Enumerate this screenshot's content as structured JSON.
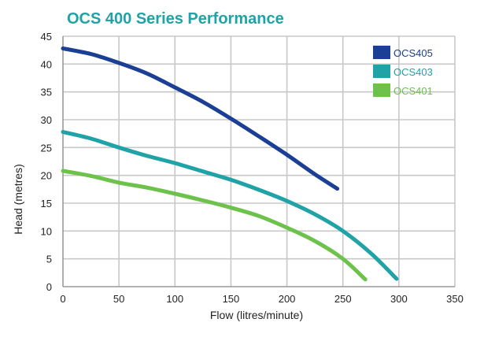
{
  "chart_data": {
    "type": "line",
    "title": "OCS 400 Series Performance",
    "xlabel": "Flow (litres/minute)",
    "ylabel": "Head (metres)",
    "xlim": [
      0,
      350
    ],
    "ylim": [
      0,
      45
    ],
    "x_ticks": [
      "0",
      "50",
      "100",
      "150",
      "200",
      "250",
      "300",
      "350"
    ],
    "y_ticks": [
      "0",
      "5",
      "10",
      "15",
      "20",
      "25",
      "30",
      "35",
      "40",
      "45"
    ],
    "grid": true,
    "legend_position": "top-right",
    "title_color": "#1fa3a6",
    "series": [
      {
        "name": "OCS405",
        "color": "#1a3f94",
        "points": [
          [
            0,
            42.8
          ],
          [
            25,
            41.8
          ],
          [
            50,
            40.2
          ],
          [
            75,
            38.3
          ],
          [
            100,
            35.8
          ],
          [
            125,
            33.2
          ],
          [
            150,
            30.2
          ],
          [
            175,
            27.0
          ],
          [
            200,
            23.7
          ],
          [
            225,
            20.2
          ],
          [
            245,
            17.6
          ]
        ]
      },
      {
        "name": "OCS403",
        "color": "#1fa3a6",
        "points": [
          [
            0,
            27.8
          ],
          [
            25,
            26.6
          ],
          [
            50,
            25.0
          ],
          [
            75,
            23.5
          ],
          [
            100,
            22.2
          ],
          [
            125,
            20.7
          ],
          [
            150,
            19.2
          ],
          [
            175,
            17.4
          ],
          [
            200,
            15.4
          ],
          [
            225,
            13.0
          ],
          [
            250,
            10.0
          ],
          [
            275,
            6.0
          ],
          [
            298,
            1.4
          ]
        ]
      },
      {
        "name": "OCS401",
        "color": "#6cc24a",
        "points": [
          [
            0,
            20.8
          ],
          [
            25,
            19.9
          ],
          [
            50,
            18.7
          ],
          [
            75,
            17.8
          ],
          [
            100,
            16.7
          ],
          [
            125,
            15.5
          ],
          [
            150,
            14.2
          ],
          [
            175,
            12.7
          ],
          [
            200,
            10.6
          ],
          [
            225,
            8.2
          ],
          [
            250,
            5.0
          ],
          [
            270,
            1.3
          ]
        ]
      }
    ]
  }
}
